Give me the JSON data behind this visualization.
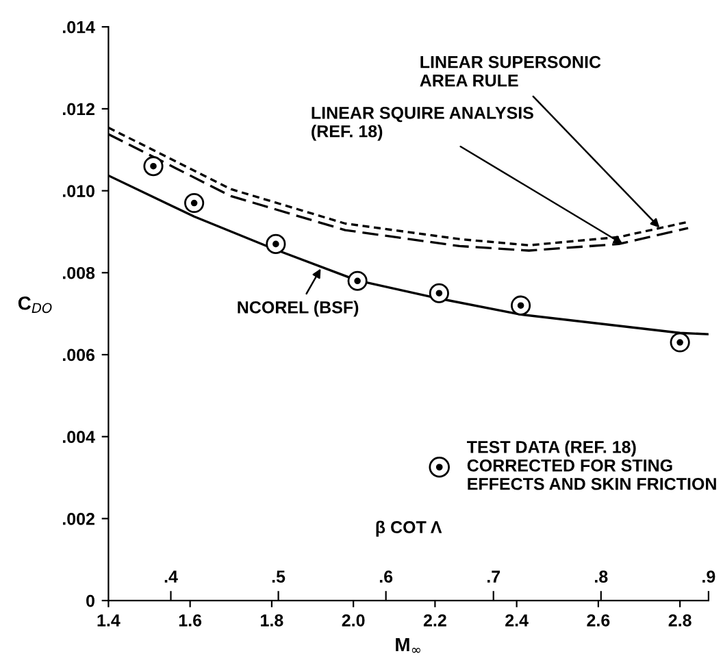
{
  "chart_data": {
    "type": "line",
    "xlabel": "M$_{∞}$",
    "ylabel": "C$_{DO}$",
    "x2label": "β COT Λ",
    "xlim": [
      1.4,
      2.87
    ],
    "ylim": [
      0,
      0.014
    ],
    "xticks": [
      1.4,
      1.6,
      1.8,
      {
        "value": 2.0,
        "label": "2.0"
      },
      2.2,
      2.4,
      2.6,
      2.8
    ],
    "yticks": [
      {
        "value": 0,
        "label": "0"
      },
      {
        "value": 0.002,
        "label": ".002"
      },
      {
        "value": 0.004,
        "label": ".004"
      },
      {
        "value": 0.006,
        "label": ".006"
      },
      {
        "value": 0.008,
        "label": ".008"
      },
      {
        "value": 0.01,
        "label": ".010"
      },
      {
        "value": 0.012,
        "label": ".012"
      },
      {
        "value": 0.014,
        "label": ".014"
      }
    ],
    "x2lim": [
      0.342,
      0.9
    ],
    "x2ticks": [
      {
        "value": 0.4,
        "label": ".4"
      },
      {
        "value": 0.5,
        "label": ".5"
      },
      {
        "value": 0.6,
        "label": ".6"
      },
      {
        "value": 0.7,
        "label": ".7"
      },
      {
        "value": 0.8,
        "label": ".8"
      },
      {
        "value": 0.9,
        "label": ".9"
      }
    ],
    "grid": false,
    "legend": "lower right",
    "series": [
      {
        "color": "#000000",
        "line_style": "solid",
        "x": [
          1.4,
          1.61,
          1.81,
          2.01,
          2.21,
          2.41,
          2.8,
          2.87
        ],
        "values": [
          0.01037,
          0.00937,
          0.00856,
          0.00781,
          0.00737,
          0.00698,
          0.00653,
          0.0065
        ]
      },
      {
        "color": "#000000",
        "line_style": "dashed",
        "x": [
          1.4,
          1.7,
          1.98,
          2.26,
          2.43,
          2.65,
          2.82
        ],
        "values": [
          0.01138,
          0.00987,
          0.00904,
          0.00865,
          0.00854,
          0.0087,
          0.00909
        ]
      },
      {
        "color": "#000000",
        "line_style": "dotted",
        "x": [
          1.4,
          1.7,
          1.98,
          2.26,
          2.43,
          2.65,
          2.82
        ],
        "values": [
          0.01154,
          0.01004,
          0.0092,
          0.00882,
          0.00867,
          0.00887,
          0.00924
        ]
      },
      {
        "type": "scatter",
        "name": "TEST DATA (REF. 18)\nCORRECTED FOR STING\nEFFECTS AND SKIN FRICTION",
        "color": "#000000",
        "marker": "circle",
        "x": [
          1.51,
          1.61,
          1.81,
          2.01,
          2.21,
          2.41,
          2.8
        ],
        "values": [
          0.0106,
          0.0097,
          0.0087,
          0.0078,
          0.0075,
          0.0072,
          0.0063
        ]
      }
    ],
    "annotations": [
      {
        "text": "LINEAR SUPERSONIC\nAREA RULE",
        "x": 2.75,
        "y": 0.0091
      },
      {
        "text": "LINEAR SQUIRE ANALYSIS\n(REF. 18)",
        "x": 2.66,
        "y": 0.0087
      },
      {
        "text": "NCOREL (BSF)",
        "x": 1.92,
        "y": 0.0081
      }
    ]
  }
}
